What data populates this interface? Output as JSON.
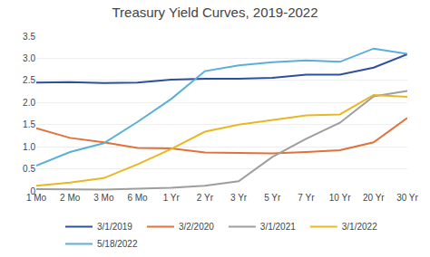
{
  "chart_data": {
    "type": "line",
    "title": "Treasury Yield Curves, 2019-2022",
    "categories": [
      "1 Mo",
      "2 Mo",
      "3 Mo",
      "6 Mo",
      "1 Yr",
      "2 Yr",
      "3 Yr",
      "5 Yr",
      "7 Yr",
      "10 Yr",
      "20 Yr",
      "30 Yr"
    ],
    "series": [
      {
        "name": "3/1/2019",
        "color": "#2e4f9c",
        "values": [
          2.45,
          2.46,
          2.44,
          2.45,
          2.52,
          2.54,
          2.54,
          2.56,
          2.63,
          2.63,
          2.79,
          3.09
        ]
      },
      {
        "name": "3/2/2020",
        "color": "#e07239",
        "values": [
          1.42,
          1.2,
          1.1,
          0.97,
          0.96,
          0.87,
          0.86,
          0.85,
          0.88,
          0.92,
          1.1,
          1.65
        ]
      },
      {
        "name": "3/1/2021",
        "color": "#9e9e9e",
        "values": [
          0.04,
          0.03,
          0.03,
          0.05,
          0.07,
          0.12,
          0.22,
          0.77,
          1.18,
          1.54,
          2.14,
          2.26
        ]
      },
      {
        "name": "3/1/2022",
        "color": "#e8b820",
        "values": [
          0.12,
          0.19,
          0.29,
          0.6,
          0.95,
          1.34,
          1.5,
          1.6,
          1.71,
          1.73,
          2.17,
          2.13
        ]
      },
      {
        "name": "5/18/2022",
        "color": "#5bafd6",
        "values": [
          0.57,
          0.88,
          1.08,
          1.56,
          2.08,
          2.71,
          2.84,
          2.91,
          2.95,
          2.92,
          3.22,
          3.1
        ]
      }
    ],
    "ylim": [
      0,
      3.5
    ],
    "yticks": [
      0,
      0.5,
      {
        "value": 1,
        "label": "1.0"
      },
      1.5,
      {
        "value": 2,
        "label": "2.0"
      },
      2.5,
      {
        "value": 3,
        "label": "3.0"
      },
      3.5
    ],
    "grid": true,
    "legend": "bottom"
  }
}
